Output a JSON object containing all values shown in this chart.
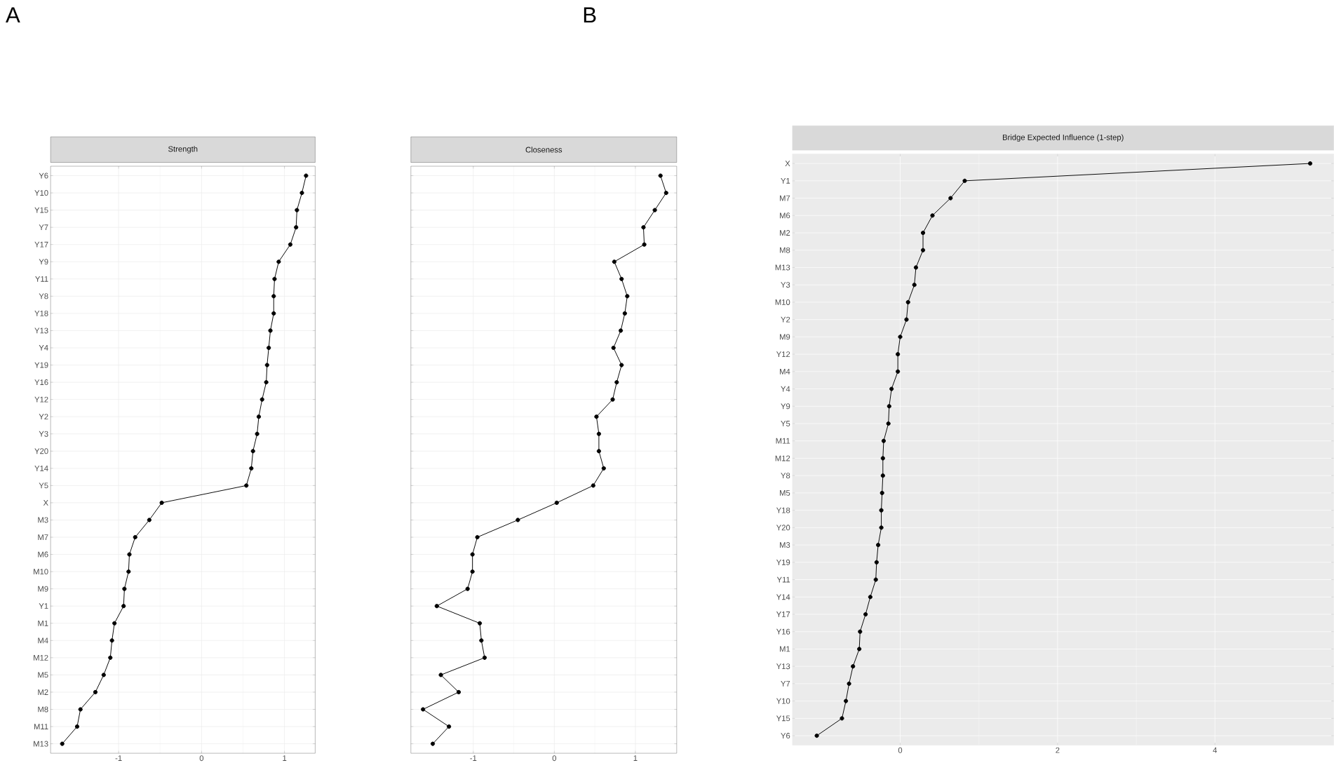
{
  "chart_data": [
    {
      "type": "line",
      "title": "Strength",
      "orientation": "horizontal",
      "categories": [
        "Y6",
        "Y10",
        "Y15",
        "Y7",
        "Y17",
        "Y9",
        "Y11",
        "Y8",
        "Y18",
        "Y13",
        "Y4",
        "Y19",
        "Y16",
        "Y12",
        "Y2",
        "Y3",
        "Y20",
        "Y14",
        "Y5",
        "X",
        "M3",
        "M7",
        "M6",
        "M10",
        "M9",
        "Y1",
        "M1",
        "M4",
        "M12",
        "M5",
        "M2",
        "M8",
        "M11",
        "M13"
      ],
      "series": [
        {
          "color": "#000000",
          "values": [
            1.26,
            1.21,
            1.15,
            1.14,
            1.07,
            0.93,
            0.88,
            0.87,
            0.87,
            0.83,
            0.81,
            0.79,
            0.78,
            0.73,
            0.69,
            0.67,
            0.62,
            0.6,
            0.54,
            -0.48,
            -0.63,
            -0.8,
            -0.87,
            -0.88,
            -0.93,
            -0.94,
            -1.05,
            -1.08,
            -1.1,
            -1.18,
            -1.28,
            -1.46,
            -1.5,
            -1.68
          ]
        }
      ],
      "xlim": [
        -1.82,
        1.37
      ],
      "xticks": [
        -1,
        0,
        1
      ],
      "grid": true,
      "marker": "circle",
      "line_style": "solid",
      "annotations": [
        "A"
      ]
    },
    {
      "type": "line",
      "title": "Closeness",
      "orientation": "horizontal",
      "categories": [
        "Y6",
        "Y10",
        "Y15",
        "Y7",
        "Y17",
        "Y9",
        "Y11",
        "Y8",
        "Y18",
        "Y13",
        "Y4",
        "Y19",
        "Y16",
        "Y12",
        "Y2",
        "Y3",
        "Y20",
        "Y14",
        "Y5",
        "X",
        "M3",
        "M7",
        "M6",
        "M10",
        "M9",
        "Y1",
        "M1",
        "M4",
        "M12",
        "M5",
        "M2",
        "M8",
        "M11",
        "M13"
      ],
      "series": [
        {
          "color": "#000000",
          "values": [
            1.31,
            1.38,
            1.24,
            1.1,
            1.11,
            0.74,
            0.83,
            0.9,
            0.87,
            0.82,
            0.73,
            0.83,
            0.77,
            0.72,
            0.52,
            0.55,
            0.55,
            0.61,
            0.48,
            0.03,
            -0.45,
            -0.95,
            -1.01,
            -1.01,
            -1.07,
            -1.45,
            -0.92,
            -0.9,
            -0.86,
            -1.4,
            -1.18,
            -1.62,
            -1.3,
            -1.5
          ]
        }
      ],
      "xlim": [
        -1.77,
        1.51
      ],
      "xticks": [
        -1,
        0,
        1
      ],
      "grid": true,
      "marker": "circle",
      "line_style": "solid",
      "tick_labels": "x"
    },
    {
      "type": "line",
      "title": "Bridge Expected Influence (1-step)",
      "orientation": "horizontal",
      "categories": [
        "X",
        "Y1",
        "M7",
        "M6",
        "M2",
        "M8",
        "M13",
        "Y3",
        "M10",
        "Y2",
        "M9",
        "Y12",
        "M4",
        "Y4",
        "Y9",
        "Y5",
        "M11",
        "M12",
        "Y8",
        "M5",
        "Y18",
        "Y20",
        "M3",
        "Y19",
        "Y11",
        "Y14",
        "Y17",
        "Y16",
        "M1",
        "Y13",
        "Y7",
        "Y10",
        "Y15",
        "Y6"
      ],
      "series": [
        {
          "color": "#000000",
          "values": [
            5.21,
            0.82,
            0.64,
            0.41,
            0.29,
            0.29,
            0.2,
            0.18,
            0.1,
            0.08,
            0.0,
            -0.03,
            -0.03,
            -0.11,
            -0.14,
            -0.15,
            -0.21,
            -0.22,
            -0.22,
            -0.23,
            -0.24,
            -0.24,
            -0.28,
            -0.3,
            -0.31,
            -0.38,
            -0.44,
            -0.51,
            -0.52,
            -0.6,
            -0.65,
            -0.69,
            -0.74,
            -1.06
          ]
        }
      ],
      "xlim": [
        -1.37,
        5.51
      ],
      "xticks": [
        0,
        2,
        4
      ],
      "grid": true,
      "marker": "circle",
      "line_style": "solid",
      "annotations": [
        "B"
      ]
    }
  ]
}
